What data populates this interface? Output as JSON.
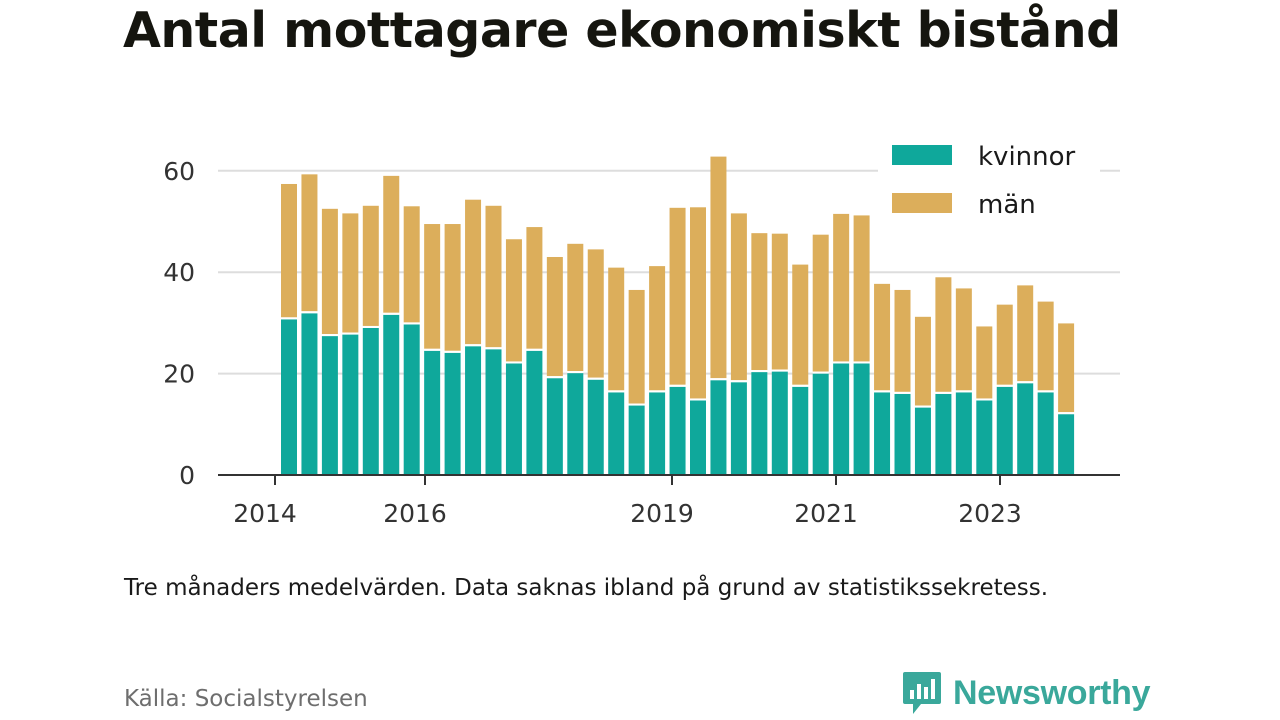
{
  "title": "Antal mottagare ekonomiskt bistånd",
  "note": "Tre månaders medelvärden. Data saknas ibland på grund av statistikssekretess.",
  "source": "Källa: Socialstyrelsen",
  "brand": "Newsworthy",
  "colors": {
    "kvinnor": "#0fa89b",
    "man": "#dcae5b",
    "grid": "#dddddd",
    "axis": "#333333",
    "brand": "#3aa89b"
  },
  "chart_data": {
    "type": "bar",
    "stacked": true,
    "ylim": [
      0,
      70
    ],
    "y_ticks": [
      0,
      20,
      40,
      60
    ],
    "x_tick_labels": [
      "2014",
      "2016",
      "2019",
      "2021",
      "2023"
    ],
    "grid": "horizontal",
    "legend_position": "top-right",
    "series": [
      {
        "name": "kvinnor",
        "values": [
          30.7,
          31.9,
          27.4,
          27.7,
          29.0,
          31.6,
          29.7,
          24.5,
          24.1,
          25.4,
          24.8,
          22.0,
          24.5,
          19.1,
          20.1,
          18.8,
          16.3,
          13.7,
          16.3,
          17.4,
          14.7,
          18.7,
          18.3,
          20.3,
          20.4,
          17.4,
          20.0,
          22.0,
          22.0,
          16.3,
          16.0,
          13.3,
          16.0,
          16.3,
          14.7,
          17.4,
          18.1,
          16.3,
          12.0
        ]
      },
      {
        "name": "män",
        "values": [
          26.7,
          27.4,
          25.1,
          23.9,
          24.1,
          27.4,
          23.3,
          25.0,
          25.4,
          28.9,
          28.3,
          24.5,
          24.4,
          23.9,
          25.5,
          25.7,
          24.6,
          22.8,
          24.9,
          35.3,
          38.1,
          44.1,
          33.3,
          27.4,
          27.2,
          24.1,
          27.4,
          29.5,
          29.2,
          21.4,
          20.5,
          17.9,
          23.0,
          20.5,
          14.6,
          16.2,
          19.3,
          17.9,
          17.9
        ]
      }
    ]
  }
}
